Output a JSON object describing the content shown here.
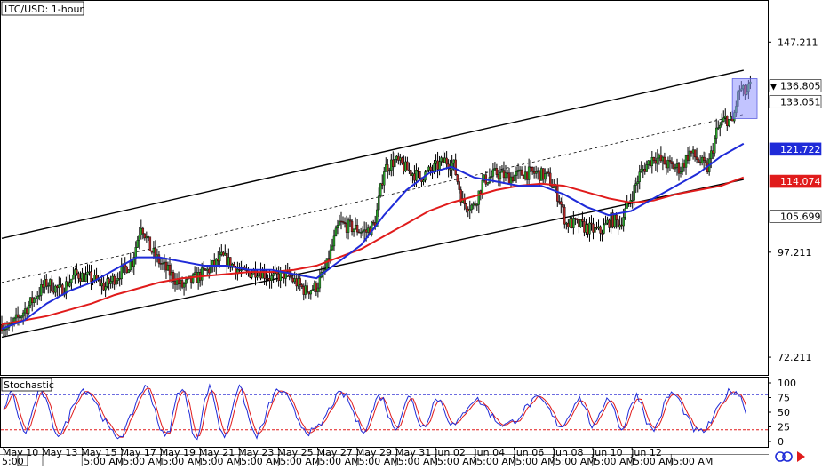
{
  "chart_title": "LTC/USD: 1-hour",
  "indicator_title": "Stochastic",
  "colors": {
    "candle_up": "#2aa52a",
    "candle_down": "#b22222",
    "wick": "#000000",
    "ma_fast": "#1f2bd8",
    "ma_slow": "#e01b1b",
    "highlight": "#8f93ff",
    "stoch_main": "#1f2bd8",
    "stoch_signal": "#e01b1b",
    "level_top": "#3b3bd6",
    "level_bottom": "#e01b1b"
  },
  "chart_data": [
    {
      "type": "candlestick",
      "price_axis_ticks": [
        "147.211",
        "97.211",
        "72.211"
      ],
      "price_labels": [
        {
          "text": "136.805",
          "value": 136.805,
          "bg": "#ffffff",
          "fg": "#000000",
          "marker": "▼"
        },
        {
          "text": "133.051",
          "value": 133.051,
          "bg": "#ffffff",
          "fg": "#000000",
          "marker": ""
        },
        {
          "text": "121.722",
          "value": 121.722,
          "bg": "#1f2bd8",
          "fg": "#ffffff",
          "marker": ""
        },
        {
          "text": "114.074",
          "value": 114.074,
          "bg": "#e01b1b",
          "fg": "#ffffff",
          "marker": ""
        },
        {
          "text": "105.699",
          "value": 105.699,
          "bg": "#ffffff",
          "fg": "#000000",
          "marker": ""
        }
      ],
      "ylim": [
        68,
        157
      ],
      "date_labels": [
        "May 10",
        "May 13",
        "May 15",
        "May 17",
        "May 19",
        "May 21",
        "May 23",
        "May 25",
        "May 27",
        "May 29",
        "May 31",
        "Jun 02",
        "Jun 04",
        "Jun 06",
        "Jun 08",
        "Jun 10",
        "Jun 12"
      ],
      "time_labels": [
        "5:00",
        "5:00 AM",
        "5:00 AM",
        "5:00 AM",
        "5:00 AM",
        "5:00 AM",
        "5:00 AM",
        "5:00 AM",
        "5:00 AM",
        "5:00 AM",
        "5:00 AM",
        "5:00 AM",
        "5:00 AM",
        "5:00 AM",
        "5:00 AM",
        "5:00 AM",
        "5:00 AM"
      ],
      "close_path": [
        [
          0,
          80
        ],
        [
          0.3,
          79
        ],
        [
          0.8,
          82
        ],
        [
          1.4,
          86
        ],
        [
          2.0,
          90
        ],
        [
          2.6,
          88
        ],
        [
          3.3,
          92
        ],
        [
          4.0,
          91
        ],
        [
          4.6,
          89
        ],
        [
          5.2,
          92
        ],
        [
          5.8,
          95
        ],
        [
          6.2,
          104
        ],
        [
          6.6,
          98
        ],
        [
          7.0,
          95
        ],
        [
          7.5,
          92
        ],
        [
          8.0,
          89
        ],
        [
          8.6,
          91
        ],
        [
          9.2,
          93
        ],
        [
          9.8,
          96
        ],
        [
          10.3,
          94
        ],
        [
          10.8,
          92
        ],
        [
          11.4,
          93
        ],
        [
          12.0,
          91
        ],
        [
          12.6,
          92
        ],
        [
          13.1,
          90
        ],
        [
          13.5,
          88
        ],
        [
          14.0,
          89
        ],
        [
          14.4,
          93
        ],
        [
          15.0,
          104
        ],
        [
          15.6,
          103
        ],
        [
          16.2,
          102
        ],
        [
          16.6,
          104
        ],
        [
          17.0,
          117
        ],
        [
          17.5,
          119
        ],
        [
          18.0,
          117
        ],
        [
          18.6,
          115
        ],
        [
          19.2,
          117
        ],
        [
          19.7,
          119
        ],
        [
          20.1,
          118
        ],
        [
          20.5,
          109
        ],
        [
          21.0,
          108
        ],
        [
          21.4,
          114
        ],
        [
          22.0,
          116
        ],
        [
          22.6,
          115
        ],
        [
          23.2,
          116
        ],
        [
          23.8,
          116
        ],
        [
          24.3,
          115
        ],
        [
          24.8,
          110
        ],
        [
          25.1,
          104
        ],
        [
          25.5,
          104
        ],
        [
          26.0,
          103
        ],
        [
          26.6,
          102
        ],
        [
          27.1,
          105
        ],
        [
          27.5,
          104
        ],
        [
          27.9,
          109
        ],
        [
          28.4,
          116
        ],
        [
          29.0,
          120
        ],
        [
          29.6,
          118
        ],
        [
          30.2,
          117
        ],
        [
          30.6,
          121
        ],
        [
          31.0,
          119
        ],
        [
          31.4,
          117
        ],
        [
          31.8,
          126
        ],
        [
          32.2,
          129
        ],
        [
          32.5,
          128
        ],
        [
          32.8,
          136
        ],
        [
          33.1,
          135
        ],
        [
          33.3,
          136.8
        ]
      ],
      "ma_fast_path": [
        [
          0,
          79
        ],
        [
          1.0,
          81
        ],
        [
          2.0,
          85
        ],
        [
          3.0,
          88
        ],
        [
          4.0,
          90
        ],
        [
          5.0,
          93
        ],
        [
          6.0,
          96
        ],
        [
          7.0,
          96
        ],
        [
          8.0,
          95
        ],
        [
          9.0,
          94
        ],
        [
          10.0,
          94
        ],
        [
          11.0,
          93
        ],
        [
          12.0,
          93
        ],
        [
          13.0,
          92
        ],
        [
          14.0,
          91
        ],
        [
          15.0,
          95
        ],
        [
          16.0,
          99
        ],
        [
          17.0,
          106
        ],
        [
          18.0,
          112
        ],
        [
          19.0,
          116
        ],
        [
          20.0,
          117.5
        ],
        [
          21.0,
          115
        ],
        [
          22.0,
          114
        ],
        [
          23.0,
          113
        ],
        [
          24.0,
          113
        ],
        [
          25.0,
          111
        ],
        [
          26.0,
          108
        ],
        [
          27.0,
          106
        ],
        [
          28.0,
          107
        ],
        [
          29.0,
          110
        ],
        [
          30.0,
          113
        ],
        [
          31.0,
          116
        ],
        [
          32.0,
          120
        ],
        [
          33.0,
          123
        ]
      ],
      "ma_slow_path": [
        [
          0,
          80
        ],
        [
          1.0,
          81
        ],
        [
          2.0,
          82
        ],
        [
          3.0,
          83.5
        ],
        [
          4.0,
          85
        ],
        [
          5.0,
          87
        ],
        [
          6.0,
          88.5
        ],
        [
          7.0,
          90
        ],
        [
          8.0,
          91
        ],
        [
          9.0,
          91.5
        ],
        [
          10.0,
          92
        ],
        [
          11.0,
          92.5
        ],
        [
          12.0,
          92.5
        ],
        [
          13.0,
          93
        ],
        [
          14.0,
          94
        ],
        [
          15.0,
          96
        ],
        [
          16.0,
          98
        ],
        [
          17.0,
          101
        ],
        [
          18.0,
          104
        ],
        [
          19.0,
          107
        ],
        [
          20.0,
          109
        ],
        [
          21.0,
          110.5
        ],
        [
          22.0,
          112
        ],
        [
          23.0,
          113
        ],
        [
          24.0,
          113.5
        ],
        [
          25.0,
          113
        ],
        [
          26.0,
          111.5
        ],
        [
          27.0,
          110
        ],
        [
          28.0,
          109
        ],
        [
          29.0,
          109.5
        ],
        [
          30.0,
          111
        ],
        [
          31.0,
          112
        ],
        [
          32.0,
          113
        ],
        [
          33.0,
          115
        ]
      ],
      "channel_upper": [
        [
          0,
          100.5
        ],
        [
          33.0,
          140.5
        ]
      ],
      "channel_mid": [
        [
          0,
          90.0
        ],
        [
          33.0,
          130.0
        ]
      ],
      "channel_lower": [
        [
          0,
          77.0
        ],
        [
          33.0,
          114.5
        ]
      ],
      "highlight_box": {
        "x0": 32.5,
        "x1": 33.6,
        "y0": 129.0,
        "y1": 138.5
      }
    },
    {
      "type": "line",
      "name": "Stochastic",
      "ylim": [
        0,
        100
      ],
      "y_ticks": [
        "100",
        "75",
        "50",
        "25",
        "0"
      ],
      "levels": [
        80,
        20
      ]
    }
  ]
}
